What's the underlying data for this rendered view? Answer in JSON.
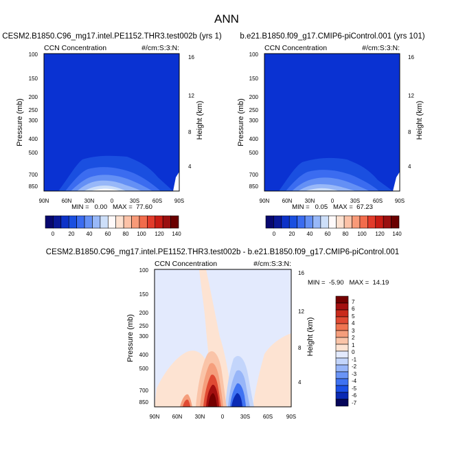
{
  "page_title": "ANN",
  "colors": {
    "base_panel_fill": "#0a32d2",
    "diff_background": "#fde3d2",
    "abs_palette": [
      "#08086f",
      "#0a1896",
      "#0c32c8",
      "#1a4fe0",
      "#3b6cf0",
      "#6490f5",
      "#98b8f8",
      "#cddff9",
      "#fffafa",
      "#fde1d0",
      "#fcc2a7",
      "#f89a78",
      "#f26c4c",
      "#e23b2a",
      "#c81c14",
      "#9a0f0f",
      "#6a0000"
    ],
    "diff_palette": [
      "#06065a",
      "#0a2ab4",
      "#1c50e6",
      "#3f72f2",
      "#6a94f6",
      "#97b5f8",
      "#c3d5fb",
      "#e3eafd",
      "#fde3d2",
      "#fac4a8",
      "#f59e7c",
      "#ef7451",
      "#e04a33",
      "#c92a1c",
      "#a41010",
      "#740000"
    ]
  },
  "chart_data": [
    {
      "type": "heatmap",
      "title": "CESM2.B1850.C96_mg17.intel.PE1152.THR3.test002b (yrs 1)",
      "left_label": "CCN Concentration",
      "right_label": "#/cm:S:3:N:",
      "ylabel": "Pressure (mb)",
      "y2label": "Height (km)",
      "xticks": [
        "90N",
        "60N",
        "30N",
        "0",
        "30S",
        "60S",
        "90S"
      ],
      "yticks": [
        "100",
        "150",
        "200",
        "250",
        "300",
        "400",
        "500",
        "700",
        "850"
      ],
      "y2ticks": [
        "16",
        "12",
        "8",
        "4"
      ],
      "stats": "MIN =   0.00   MAX =  77.60",
      "colorbar": {
        "ticks": [
          "0",
          "20",
          "40",
          "60",
          "80",
          "100",
          "120",
          "140"
        ]
      }
    },
    {
      "type": "heatmap",
      "title": "b.e21.B1850.f09_g17.CMIP6-piControl.001 (yrs 101)",
      "left_label": "CCN Concentration",
      "right_label": "#/cm:S:3:N:",
      "ylabel": "Pressure (mb)",
      "y2label": "Height (km)",
      "xticks": [
        "90N",
        "60N",
        "30N",
        "0",
        "30S",
        "60S",
        "90S"
      ],
      "yticks": [
        "100",
        "150",
        "200",
        "250",
        "300",
        "400",
        "500",
        "700",
        "850"
      ],
      "y2ticks": [
        "16",
        "12",
        "8",
        "4"
      ],
      "stats": "MIN =   0.05   MAX =  67.23",
      "colorbar": {
        "ticks": [
          "0",
          "20",
          "40",
          "60",
          "80",
          "100",
          "120",
          "140"
        ]
      }
    },
    {
      "type": "heatmap",
      "title": "CESM2.B1850.C96_mg17.intel.PE1152.THR3.test002b - b.e21.B1850.f09_g17.CMIP6-piControl.001",
      "left_label": "CCN Concentration",
      "right_label": "#/cm:S:3:N:",
      "ylabel": "Pressure (mb)",
      "y2label": "Height (km)",
      "xticks": [
        "90N",
        "60N",
        "30N",
        "0",
        "30S",
        "60S",
        "90S"
      ],
      "yticks": [
        "100",
        "150",
        "200",
        "250",
        "300",
        "400",
        "500",
        "700",
        "850"
      ],
      "y2ticks": [
        "16",
        "12",
        "8",
        "4"
      ],
      "stats": "MIN =  -5.90   MAX =  14.19",
      "colorbar": {
        "ticks": [
          "7",
          "6",
          "5",
          "4",
          "3",
          "2",
          "1",
          "0",
          "-1",
          "-2",
          "-3",
          "-4",
          "-5",
          "-6",
          "-7"
        ]
      }
    }
  ]
}
